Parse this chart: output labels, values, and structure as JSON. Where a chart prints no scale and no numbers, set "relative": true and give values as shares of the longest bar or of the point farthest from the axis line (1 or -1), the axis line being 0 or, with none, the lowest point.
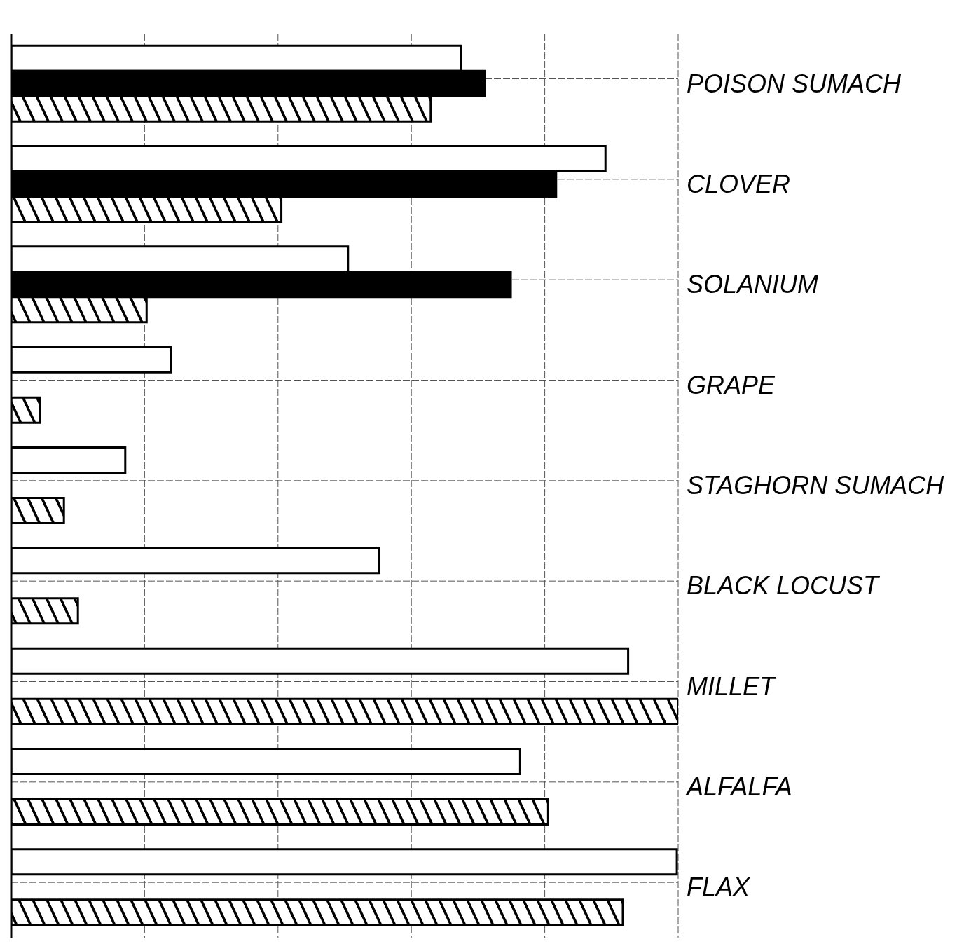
{
  "chart_data": {
    "type": "bar",
    "orientation": "horizontal",
    "relative": true,
    "grid": true,
    "categories": [
      "POISON SUMACH",
      "CLOVER",
      "SOLANIUM",
      "GRAPE",
      "STAGHORN SUMACH",
      "BLACK LOCUST",
      "MILLET",
      "ALFALFA",
      "FLAX"
    ],
    "series": [
      {
        "color": "#ffffff",
        "values": [
          0.674,
          0.891,
          0.505,
          0.239,
          0.171,
          0.552,
          0.925,
          0.763,
          0.998
        ]
      },
      {
        "color": "#000000",
        "values": [
          0.71,
          0.817,
          0.749,
          null,
          null,
          null,
          null,
          null,
          null
        ]
      },
      {
        "color": "#000000",
        "values": [
          0.629,
          0.405,
          0.203,
          0.043,
          0.079,
          0.1,
          1,
          0.805,
          0.917
        ]
      }
    ]
  }
}
